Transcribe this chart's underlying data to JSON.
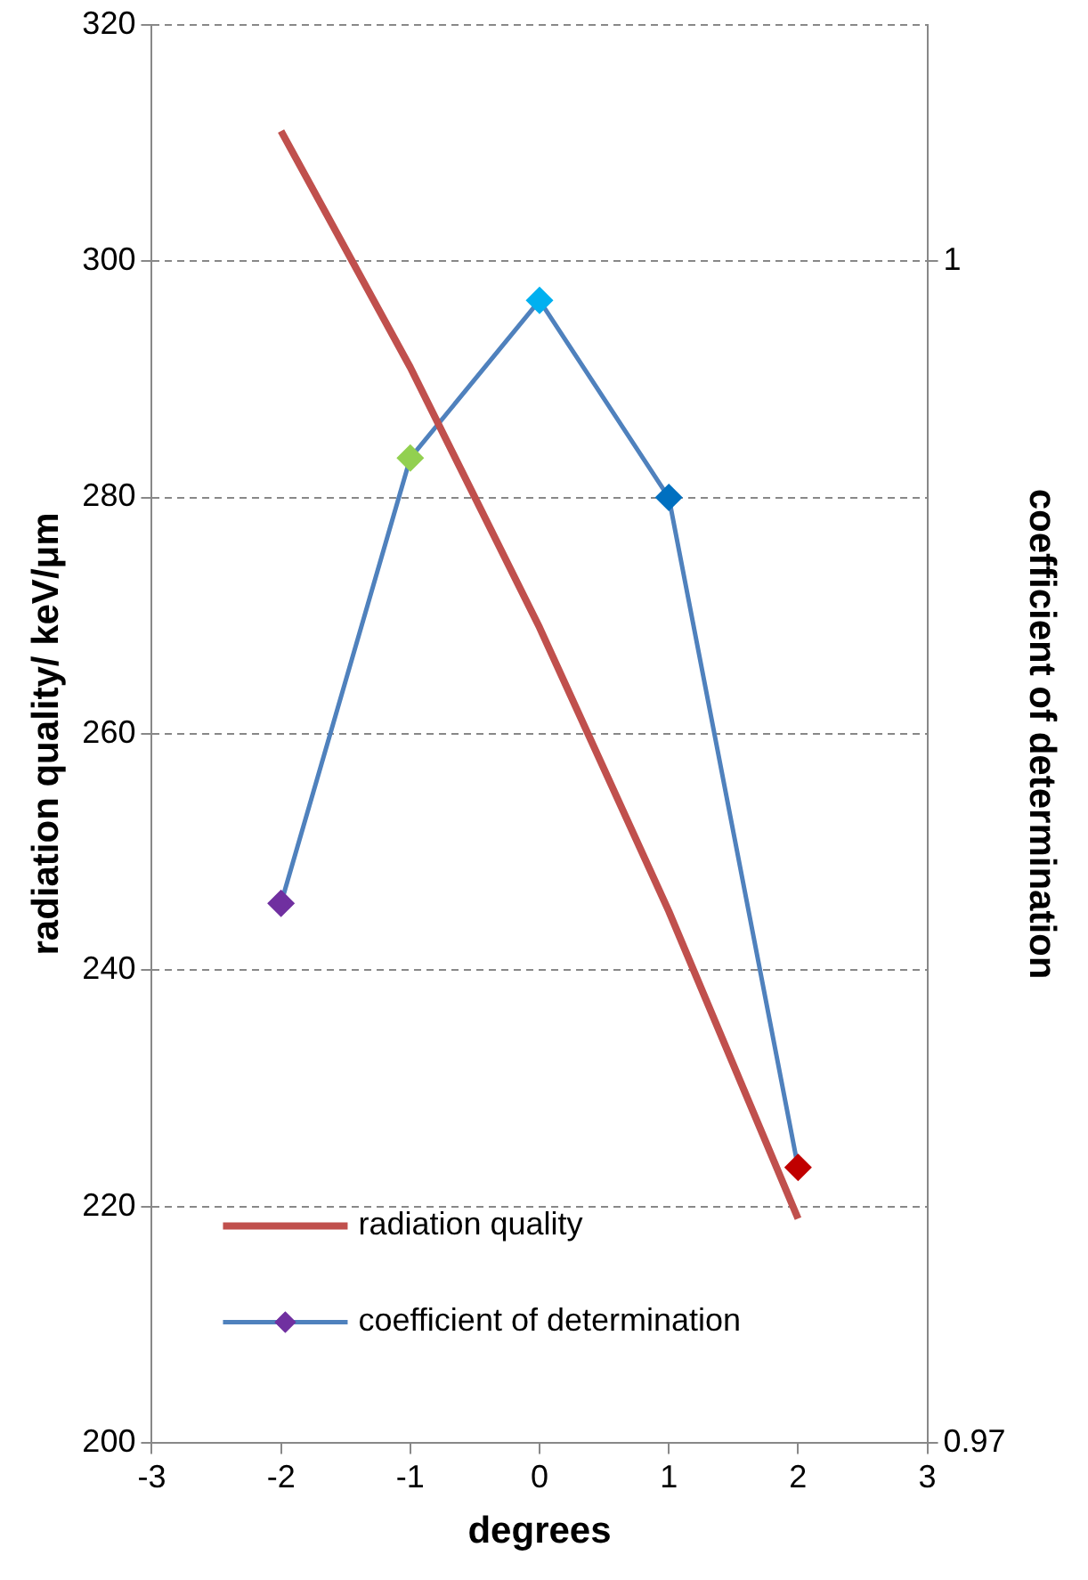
{
  "chart_data": {
    "type": "line",
    "xlabel": "degrees",
    "ylabel": "radiation quality/ keV/μm",
    "y2label": "coefficient of determination",
    "x": [
      -2,
      -1,
      0,
      1,
      2
    ],
    "xlim": [
      -3,
      3
    ],
    "xticks": [
      -3,
      -2,
      -1,
      0,
      1,
      2,
      3
    ],
    "ylim": [
      200,
      320
    ],
    "yticks": [
      200,
      220,
      240,
      260,
      280,
      300,
      320
    ],
    "y2lim": [
      0.97,
      1.006
    ],
    "y2ticks": [
      0.97,
      1
    ],
    "grid": "y",
    "legend": "bottom left",
    "line_style": "solid",
    "series": [
      {
        "name": "radiation quality",
        "color": "#c0504d",
        "values": [
          311,
          291,
          269,
          245,
          219
        ],
        "marker": "none"
      },
      {
        "name": "coefficient of determination",
        "color": "#4f81bd",
        "axis": "y2",
        "marker": "diamond",
        "colors": [
          "#7030a0",
          "#92d050",
          "#00b0f0",
          "#0070c0",
          "#c00000"
        ],
        "values": [
          0.9837,
          0.995,
          0.999,
          0.994,
          0.977
        ]
      }
    ]
  }
}
